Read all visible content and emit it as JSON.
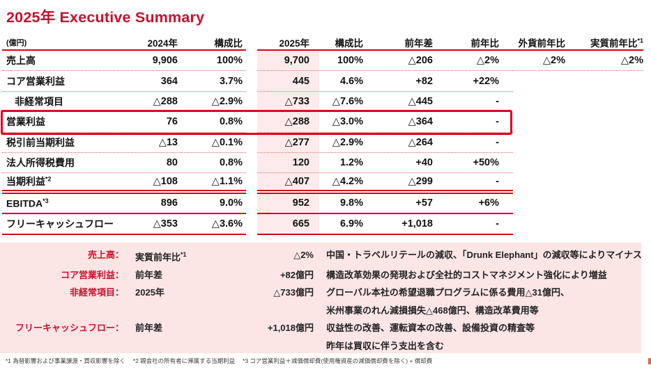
{
  "title": "2025年 Executive Summary",
  "colors": {
    "brand_red": "#c8102e",
    "line_red": "#d7000f",
    "pink_column": "#fcebea",
    "pink_panel": "#fbe5e5"
  },
  "table": {
    "unit_label": "(億円)",
    "headers": {
      "c2024": "2024年",
      "r2024": "構成比",
      "c2025": "2025年",
      "r2025": "構成比",
      "diff": "前年差",
      "yoy": "前年比",
      "fx": "外貨前年比",
      "real": "実質前年比",
      "real_sup": "*1"
    },
    "rows": [
      {
        "label": "売上高",
        "v2024": "9,906",
        "r2024": "100%",
        "v2025": "9,700",
        "r2025": "100%",
        "diff": "△206",
        "yoy": "△2%",
        "fx": "△2%",
        "real": "△2%"
      },
      {
        "label": "コア営業利益",
        "v2024": "364",
        "r2024": "3.7%",
        "v2025": "445",
        "r2025": "4.6%",
        "diff": "+82",
        "yoy": "+22%",
        "fx": "",
        "real": ""
      },
      {
        "label": "非経常項目",
        "v2024": "△288",
        "r2024": "△2.9%",
        "v2025": "△733",
        "r2025": "△7.6%",
        "diff": "△445",
        "yoy": "-",
        "fx": "",
        "real": ""
      },
      {
        "label": "営業利益",
        "v2024": "76",
        "r2024": "0.8%",
        "v2025": "△288",
        "r2025": "△3.0%",
        "diff": "△364",
        "yoy": "-",
        "fx": "",
        "real": ""
      },
      {
        "label": "税引前当期利益",
        "v2024": "△13",
        "r2024": "△0.1%",
        "v2025": "△277",
        "r2025": "△2.9%",
        "diff": "△264",
        "yoy": "-",
        "fx": "",
        "real": ""
      },
      {
        "label": "法人所得税費用",
        "v2024": "80",
        "r2024": "0.8%",
        "v2025": "120",
        "r2025": "1.2%",
        "diff": "+40",
        "yoy": "+50%",
        "fx": "",
        "real": ""
      },
      {
        "label": "当期利益",
        "sup": "*2",
        "v2024": "△108",
        "r2024": "△1.1%",
        "v2025": "△407",
        "r2025": "△4.2%",
        "diff": "△299",
        "yoy": "-",
        "fx": "",
        "real": ""
      },
      {
        "label": "EBITDA",
        "sup": "*3",
        "v2024": "896",
        "r2024": "9.0%",
        "v2025": "952",
        "r2025": "9.8%",
        "diff": "+57",
        "yoy": "+6%",
        "fx": "",
        "real": ""
      },
      {
        "label": "フリーキャッシュフロー",
        "v2024": "△353",
        "r2024": "△3.6%",
        "v2025": "665",
        "r2025": "6.9%",
        "diff": "+1,018",
        "yoy": "-",
        "fx": "",
        "real": ""
      }
    ]
  },
  "notes": [
    {
      "label": "売上高：",
      "metric": "実質前年比",
      "metric_sup": "*1",
      "value": "△2%",
      "desc1": "中国・トラベルリテールの減収、「Drunk Elephant」の減収等によりマイナス",
      "desc2": ""
    },
    {
      "label": "コア営業利益：",
      "metric": "前年差",
      "metric_sup": "",
      "value": "+82億円",
      "desc1": "構造改革効果の発現および全社的コストマネジメント強化により増益",
      "desc2": ""
    },
    {
      "label": "非経常項目：",
      "metric": "2025年",
      "metric_sup": "",
      "value": "△733億円",
      "desc1": "グローバル本社の希望退職プログラムに係る費用△31億円、",
      "desc2": "米州事業のれん減損損失△468億円、構造改革費用等"
    },
    {
      "label": "フリーキャッシュフロー：",
      "metric": "前年差",
      "metric_sup": "",
      "value": "+1,018億円",
      "desc1": "収益性の改善、運転資本の改善、設備投資の精査等",
      "desc2": "昨年は買収に伴う支出を含む"
    }
  ],
  "footnote": "*1 為替影響および事業譲渡・買収影響を除く　 *2 親会社の所有者に帰属する当期利益　 *3 コア営業利益＋減価償却費(使用権資産の減価償却費を除く) + 償却費"
}
